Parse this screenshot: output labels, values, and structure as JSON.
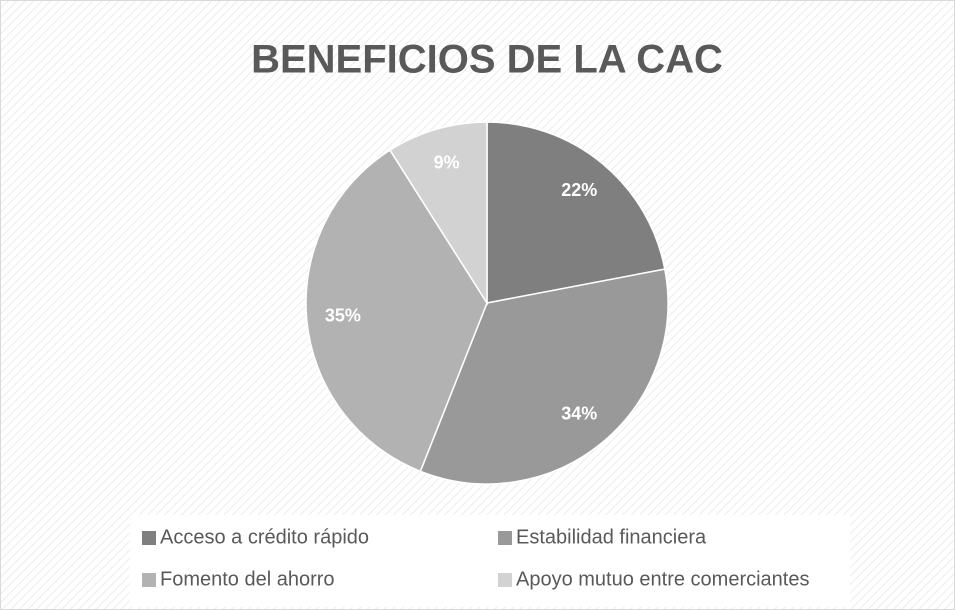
{
  "chart_data": {
    "type": "pie",
    "title": "BENEFICIOS DE LA CAC",
    "categories": [
      "Acceso a crédito rápido",
      "Estabilidad financiera",
      "Fomento del ahorro",
      "Apoyo mutuo entre comerciantes"
    ],
    "values": [
      22,
      34,
      35,
      9
    ],
    "value_labels": [
      "22%",
      "34%",
      "35%",
      "9%"
    ],
    "colors": [
      "#7f7f7f",
      "#999999",
      "#b2b2b2",
      "#d2d2d2"
    ],
    "legend": "bottom"
  }
}
